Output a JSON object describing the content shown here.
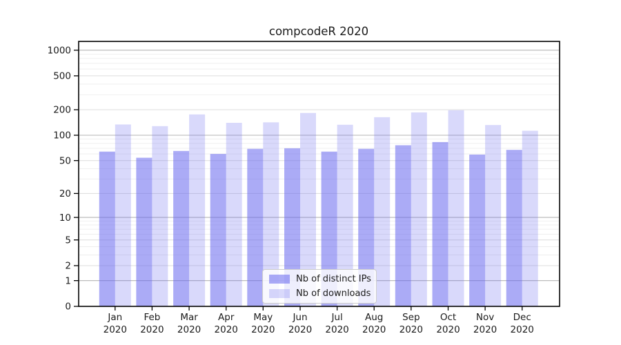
{
  "chart_data": {
    "type": "bar",
    "title": "compcodeR 2020",
    "x_categories": [
      "Jan",
      "Feb",
      "Mar",
      "Apr",
      "May",
      "Jun",
      "Jul",
      "Aug",
      "Sep",
      "Oct",
      "Nov",
      "Dec"
    ],
    "x_year_label": "2020",
    "xlabel": "",
    "ylabel": "",
    "y_scale": "log(value+1)",
    "y_ticks": [
      0,
      1,
      2,
      5,
      10,
      20,
      50,
      100,
      200,
      500,
      1000
    ],
    "y_major_gridlines": [
      1,
      10,
      100,
      1000
    ],
    "y_minor_gridlines": [
      3,
      4,
      6,
      7,
      8,
      9,
      30,
      40,
      60,
      70,
      80,
      90,
      300,
      400,
      600,
      700,
      800,
      900
    ],
    "ylim": [
      0,
      1250
    ],
    "grid": true,
    "legend_position": "lower center inside plot",
    "series": [
      {
        "name": "Nb of distinct IPs",
        "color": "#6666EE",
        "alpha": 0.55,
        "values": [
          64,
          54,
          65,
          60,
          69,
          70,
          64,
          69,
          76,
          83,
          59,
          67
        ]
      },
      {
        "name": "Nb of downloads",
        "color": "#6666EE",
        "alpha": 0.25,
        "values": [
          134,
          128,
          176,
          140,
          142,
          183,
          133,
          163,
          186,
          197,
          132,
          113
        ]
      }
    ]
  }
}
